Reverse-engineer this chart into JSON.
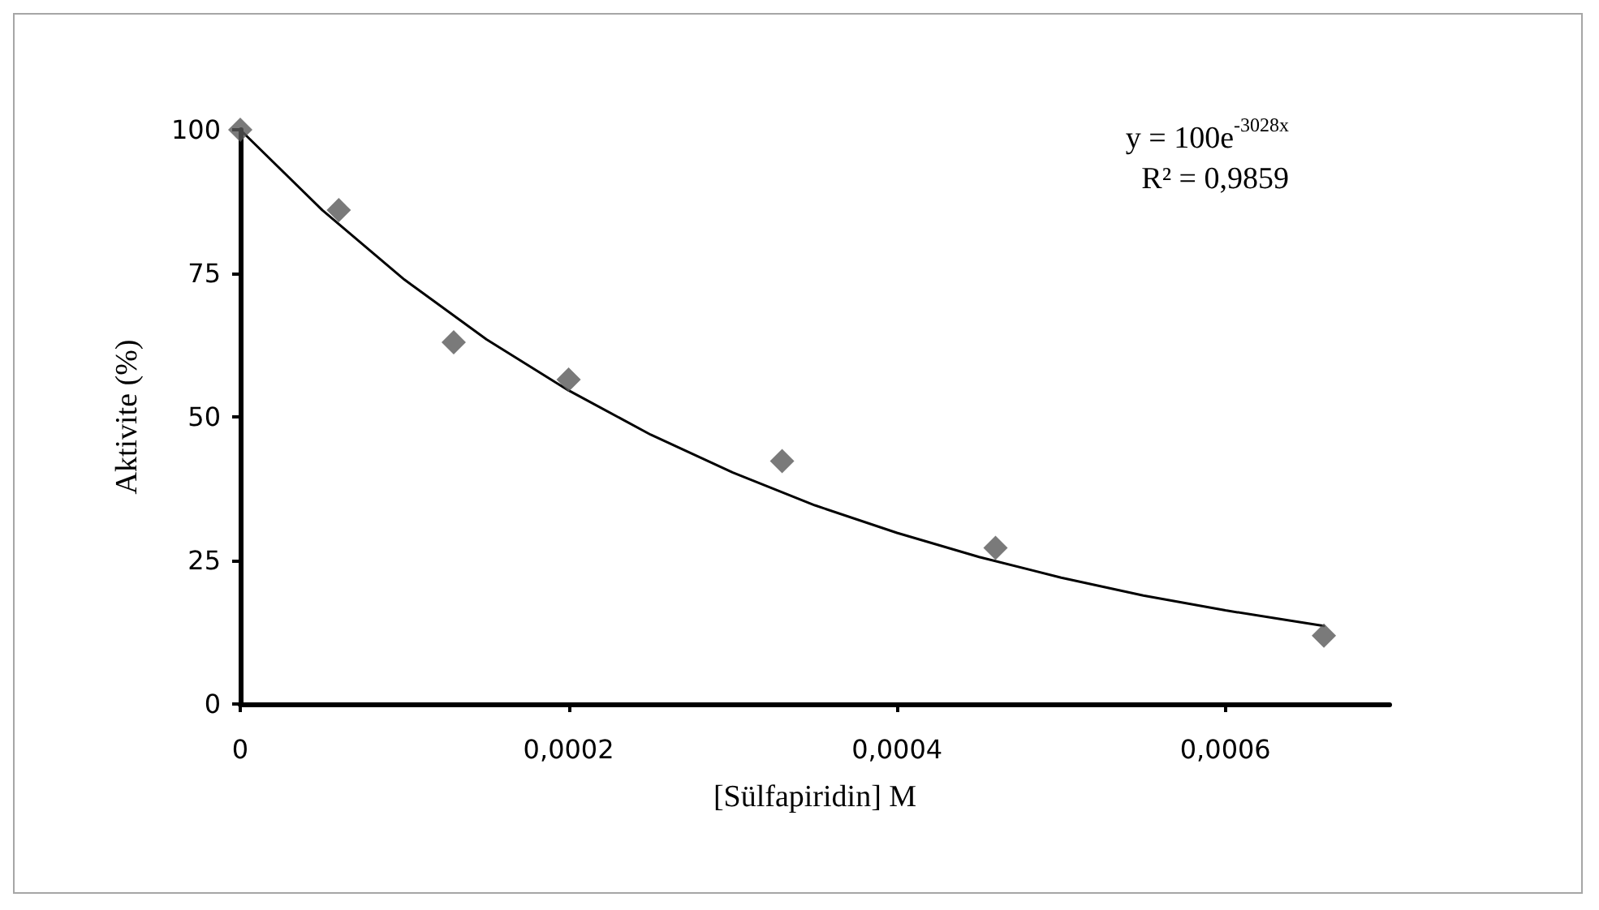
{
  "chart_data": {
    "type": "scatter",
    "xlabel": "[Sülfapiridin] M",
    "ylabel": "Aktivite (%)",
    "annotations": [
      "y = 100e$^{-3028x}$",
      "R² = 0,9859"
    ],
    "series": [
      {
        "marker": "diamond",
        "color": "#595959",
        "x": [
          0,
          6e-05,
          0.00013,
          0.0002,
          0.00033,
          0.00046,
          0.00066
        ],
        "values": [
          100,
          86,
          63,
          56.5,
          42.3,
          27.2,
          11.9
        ]
      },
      {
        "type": "line",
        "marker": "none",
        "color": "#000000",
        "x": [
          0,
          5e-05,
          0.0001,
          0.00015,
          0.0002,
          0.00025,
          0.0003,
          0.00035,
          0.0004,
          0.00045,
          0.0005,
          0.00055,
          0.0006,
          0.00066
        ],
        "values": [
          100,
          86,
          73.9,
          63.5,
          54.6,
          46.9,
          40.3,
          34.6,
          29.8,
          25.6,
          22,
          18.9,
          16.3,
          13.6
        ]
      }
    ],
    "xlim": [
      0,
      0.0007
    ],
    "xticks": [
      {
        "value": 0,
        "label": "0"
      },
      {
        "value": 0.0002,
        "label": "0,0002"
      },
      {
        "value": 0.0004,
        "label": "0,0004"
      },
      {
        "value": 0.0006,
        "label": "0,0006"
      }
    ],
    "ylim": [
      0,
      100
    ],
    "yticks": [
      0,
      25,
      50,
      75,
      100
    ],
    "grid": false
  }
}
